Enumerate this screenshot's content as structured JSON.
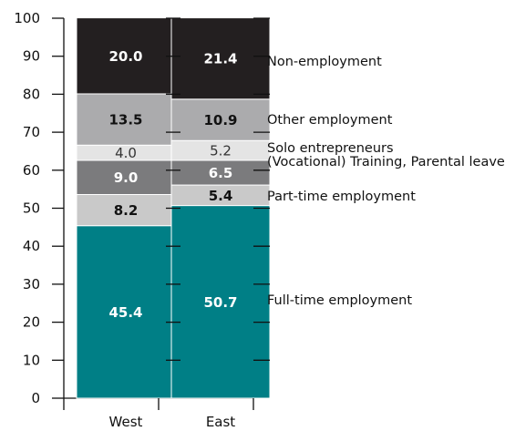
{
  "chart_data": {
    "type": "bar",
    "stacked": true,
    "categories": [
      "West",
      "East"
    ],
    "ylim": [
      0,
      100
    ],
    "yticks": [
      0,
      10,
      20,
      30,
      40,
      50,
      60,
      70,
      80,
      90,
      100
    ],
    "grid": false,
    "legend_placement": "right",
    "series": [
      {
        "name": "Full-time employment",
        "values": [
          45.4,
          50.7
        ],
        "color": "#007f86",
        "label_color": "#ffffff"
      },
      {
        "name": "Part-time employment",
        "values": [
          8.2,
          5.4
        ],
        "color": "#c9c9c9",
        "label_color": "#111111"
      },
      {
        "name": "(Vocational) Training, Parental leave",
        "values": [
          9.0,
          6.5
        ],
        "color": "#7b7b7d",
        "label_color": "#ffffff"
      },
      {
        "name": "Solo entrepreneurs",
        "values": [
          4.0,
          5.2
        ],
        "color": "#e4e4e4",
        "label_color": "#333333"
      },
      {
        "name": "Other employment",
        "values": [
          13.5,
          10.9
        ],
        "color": "#ababad",
        "label_color": "#111111"
      },
      {
        "name": "Non-employment",
        "values": [
          20.0,
          21.4
        ],
        "color": "#231f20",
        "label_color": "#ffffff"
      }
    ]
  }
}
